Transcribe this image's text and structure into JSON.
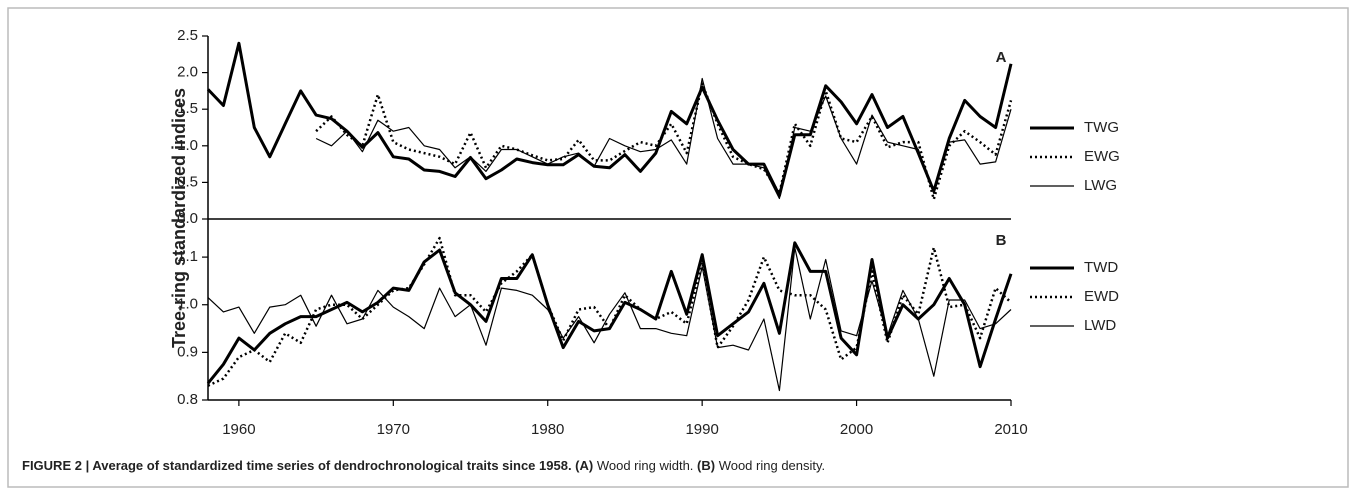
{
  "ylabel": "Tree-ring standardized indices",
  "caption": [
    {
      "text": "FIGURE 2 | Average of standardized time series of dendrochronological traits since 1958. (A)",
      "bold": true
    },
    {
      "text": " Wood ring width. ",
      "bold": false
    },
    {
      "text": "(B)",
      "bold": true
    },
    {
      "text": " Wood ring density.",
      "bold": false
    }
  ],
  "chart_data": [
    {
      "type": "line",
      "panel_label": "A",
      "legend": "right",
      "x": [
        1958,
        1959,
        1960,
        1961,
        1962,
        1963,
        1964,
        1965,
        1966,
        1967,
        1968,
        1969,
        1970,
        1971,
        1972,
        1973,
        1974,
        1975,
        1976,
        1977,
        1978,
        1979,
        1980,
        1981,
        1982,
        1983,
        1984,
        1985,
        1986,
        1987,
        1988,
        1989,
        1990,
        1991,
        1992,
        1993,
        1994,
        1995,
        1996,
        1997,
        1998,
        1999,
        2000,
        2001,
        2002,
        2003,
        2004,
        2005,
        2006,
        2007,
        2008,
        2009,
        2010
      ],
      "xlim": [
        1958,
        2010
      ],
      "ylim": [
        0,
        2.5
      ],
      "yticks": [
        {
          "value": 0,
          "label": "0.0"
        },
        0.5,
        {
          "value": 1,
          "label": "1.0"
        },
        1.5,
        {
          "value": 2,
          "label": "2.0"
        },
        2.5
      ],
      "series": [
        {
          "name": "TWG",
          "color": "#000000",
          "line_style": "thick",
          "values": [
            1.77,
            1.55,
            2.4,
            1.25,
            0.85,
            1.3,
            1.75,
            1.42,
            1.37,
            1.2,
            0.98,
            1.18,
            0.85,
            0.82,
            0.67,
            0.65,
            0.58,
            0.84,
            0.55,
            0.67,
            0.82,
            0.77,
            0.74,
            0.74,
            0.88,
            0.72,
            0.7,
            0.88,
            0.65,
            0.9,
            1.47,
            1.3,
            1.8,
            1.35,
            0.95,
            0.75,
            0.75,
            0.32,
            1.15,
            1.15,
            1.82,
            1.6,
            1.3,
            1.7,
            1.25,
            1.4,
            0.9,
            0.38,
            1.1,
            1.62,
            1.4,
            1.25,
            2.12
          ]
        },
        {
          "name": "EWG",
          "color": "#000000",
          "line_style": "dotted",
          "values": [
            null,
            null,
            null,
            null,
            null,
            null,
            null,
            1.2,
            1.4,
            1.15,
            1.0,
            1.7,
            1.05,
            0.95,
            0.9,
            0.85,
            0.75,
            1.18,
            0.7,
            1.0,
            0.95,
            0.87,
            0.8,
            0.82,
            1.08,
            0.8,
            0.8,
            0.93,
            1.05,
            1.0,
            1.3,
            0.9,
            1.85,
            1.3,
            0.85,
            0.75,
            0.68,
            0.35,
            1.3,
            1.0,
            1.75,
            1.1,
            1.05,
            1.4,
            0.98,
            1.05,
            1.05,
            0.27,
            1.0,
            1.2,
            1.05,
            0.88,
            1.62
          ]
        },
        {
          "name": "LWG",
          "color": "#000000",
          "line_style": "thin",
          "values": [
            null,
            null,
            null,
            null,
            null,
            null,
            null,
            1.1,
            1.0,
            1.2,
            0.92,
            1.35,
            1.2,
            1.25,
            1.0,
            0.95,
            0.7,
            0.85,
            0.65,
            0.95,
            0.95,
            0.85,
            0.75,
            0.85,
            0.9,
            0.72,
            1.1,
            1.0,
            0.92,
            0.95,
            1.08,
            0.75,
            1.92,
            1.1,
            0.75,
            0.75,
            0.7,
            0.28,
            1.25,
            1.2,
            1.68,
            1.1,
            0.75,
            1.42,
            1.05,
            1.0,
            0.95,
            0.35,
            1.05,
            1.08,
            0.75,
            0.78,
            1.5
          ]
        }
      ]
    },
    {
      "type": "line",
      "panel_label": "B",
      "legend": "right",
      "x": [
        1958,
        1959,
        1960,
        1961,
        1962,
        1963,
        1964,
        1965,
        1966,
        1967,
        1968,
        1969,
        1970,
        1971,
        1972,
        1973,
        1974,
        1975,
        1976,
        1977,
        1978,
        1979,
        1980,
        1981,
        1982,
        1983,
        1984,
        1985,
        1986,
        1987,
        1988,
        1989,
        1990,
        1991,
        1992,
        1993,
        1994,
        1995,
        1996,
        1997,
        1998,
        1999,
        2000,
        2001,
        2002,
        2003,
        2004,
        2005,
        2006,
        2007,
        2008,
        2009,
        2010
      ],
      "xlim": [
        1958,
        2010
      ],
      "xticks": [
        1960,
        1970,
        1980,
        1990,
        2000,
        2010
      ],
      "ylim": [
        0.8,
        1.18
      ],
      "yticks": [
        0.8,
        0.9,
        {
          "value": 1,
          "label": "1.0"
        },
        1.1
      ],
      "series": [
        {
          "name": "TWD",
          "color": "#000000",
          "line_style": "thick",
          "values": [
            0.835,
            0.875,
            0.93,
            0.905,
            0.94,
            0.96,
            0.975,
            0.975,
            0.99,
            1.005,
            0.985,
            1.005,
            1.035,
            1.03,
            1.09,
            1.115,
            1.025,
            1.0,
            0.965,
            1.055,
            1.055,
            1.105,
            1.0,
            0.91,
            0.965,
            0.945,
            0.95,
            1.005,
            0.99,
            0.97,
            1.07,
            0.98,
            1.105,
            0.935,
            0.96,
            0.985,
            1.045,
            0.94,
            1.13,
            1.07,
            1.07,
            0.93,
            0.895,
            1.095,
            0.93,
            1.0,
            0.97,
            1.0,
            1.055,
            1.0,
            0.87,
            0.97,
            1.065
          ]
        },
        {
          "name": "EWD",
          "color": "#000000",
          "line_style": "dotted",
          "values": [
            0.83,
            0.845,
            0.89,
            0.905,
            0.88,
            0.94,
            0.92,
            0.99,
            1.0,
            1.0,
            0.97,
            1.0,
            1.03,
            1.035,
            1.085,
            1.14,
            1.02,
            1.02,
            0.985,
            1.045,
            1.07,
            1.105,
            1.0,
            0.925,
            0.99,
            0.995,
            0.95,
            1.02,
            0.99,
            0.97,
            0.985,
            0.96,
            1.09,
            0.91,
            0.955,
            1.01,
            1.1,
            1.03,
            1.02,
            1.02,
            0.99,
            0.885,
            0.91,
            1.07,
            0.92,
            1.02,
            0.98,
            1.12,
            0.995,
            1.0,
            0.93,
            1.035,
            1.005
          ]
        },
        {
          "name": "LWD",
          "color": "#000000",
          "line_style": "thin",
          "values": [
            1.015,
            0.985,
            0.995,
            0.94,
            0.995,
            1.0,
            1.02,
            0.955,
            1.02,
            0.96,
            0.97,
            1.03,
            0.995,
            0.975,
            0.95,
            1.035,
            0.975,
            1.0,
            0.915,
            1.035,
            1.03,
            1.02,
            0.99,
            0.93,
            0.975,
            0.92,
            0.98,
            1.025,
            0.95,
            0.95,
            0.94,
            0.935,
            1.08,
            0.91,
            0.915,
            0.905,
            0.97,
            0.82,
            1.12,
            0.97,
            1.095,
            0.945,
            0.935,
            1.05,
            0.935,
            1.03,
            0.97,
            0.85,
            1.01,
            1.01,
            0.95,
            0.96,
            0.99
          ]
        }
      ]
    }
  ]
}
